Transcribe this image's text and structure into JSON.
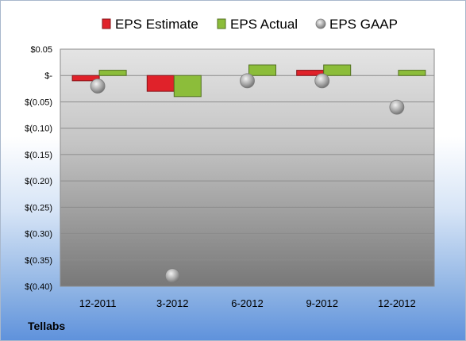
{
  "company": "Tellabs",
  "chart_data": {
    "type": "bar",
    "title": "",
    "xlabel": "",
    "ylabel": "",
    "categories": [
      "12-2011",
      "3-2012",
      "6-2012",
      "9-2012",
      "12-2012"
    ],
    "ylim": [
      -0.4,
      0.05
    ],
    "yticks": [
      0.05,
      0.0,
      -0.05,
      -0.1,
      -0.15,
      -0.2,
      -0.25,
      -0.3,
      -0.35,
      -0.4
    ],
    "ytick_labels": [
      "$0.05",
      "$-",
      "$(0.05)",
      "$(0.10)",
      "$(0.15)",
      "$(0.20)",
      "$(0.25)",
      "$(0.30)",
      "$(0.35)",
      "$(0.40)"
    ],
    "legend_position": "top",
    "grid": true,
    "series": [
      {
        "name": "EPS Estimate",
        "kind": "bar",
        "color": "#e0222a",
        "values": [
          -0.01,
          -0.03,
          null,
          0.01,
          null
        ]
      },
      {
        "name": "EPS Actual",
        "kind": "bar",
        "color": "#8cbd3a",
        "values": [
          0.01,
          -0.04,
          0.02,
          0.02,
          0.01
        ]
      },
      {
        "name": "EPS GAAP",
        "kind": "marker",
        "color": "#a8a8a8",
        "values": [
          -0.02,
          -0.38,
          -0.01,
          -0.01,
          -0.06
        ]
      }
    ]
  }
}
